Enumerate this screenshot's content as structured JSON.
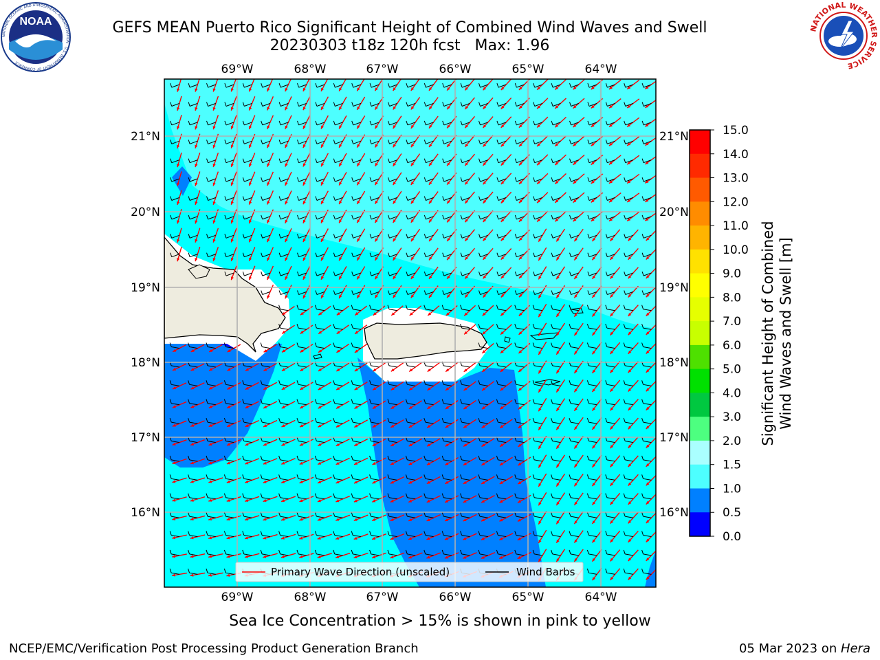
{
  "header": {
    "title_line1": "GEFS MEAN Puerto Rico Significant Height of Combined Wind Waves and Swell",
    "title_line2": "20230303 t18z 120h fcst   Max: 1.96"
  },
  "logos": {
    "left": {
      "icon": "noaa-logo",
      "text": "NOAA",
      "ring_text": "NATIONAL OCEANIC AND ATMOSPHERIC ADMINISTRATION · U.S. DEPARTMENT OF COMMERCE"
    },
    "right": {
      "icon": "nws-logo",
      "ring_text": "NATIONAL WEATHER SERVICE"
    }
  },
  "map": {
    "lon_labels": [
      "69°W",
      "68°W",
      "67°W",
      "66°W",
      "65°W",
      "64°W"
    ],
    "lat_labels": [
      "21°N",
      "20°N",
      "19°N",
      "18°N",
      "17°N",
      "16°N"
    ],
    "legend": {
      "primary_wave_label": "Primary Wave Direction (unscaled)",
      "wind_barbs_label": "Wind Barbs",
      "primary_wave_color": "#ff0000",
      "wind_barbs_color": "#000000"
    },
    "colors": {
      "land": "#eeecdf",
      "ice_free_white": "#ffffff",
      "band_0_5_1_0": "#0080ff",
      "band_1_0_1_5": "#00ffff",
      "band_1_5_2_0": "#4dffff",
      "band_0_0_0_5": "#0000ff"
    }
  },
  "colorbar": {
    "label_line1": "Significant Height of Combined",
    "label_line2": "Wind Waves and Swell [m]",
    "ticks": [
      "15.0",
      "14.0",
      "13.0",
      "12.0",
      "11.0",
      "10.0",
      "9.0",
      "8.0",
      "7.0",
      "6.0",
      "5.0",
      "4.0",
      "3.0",
      "2.0",
      "1.5",
      "1.0",
      "0.5",
      "0.0"
    ],
    "band_colors": [
      "#ff0000",
      "#ff2a00",
      "#ff5a00",
      "#ff8c00",
      "#ffb400",
      "#ffe100",
      "#ffff00",
      "#e6ff00",
      "#c8ff00",
      "#4ee000",
      "#00e000",
      "#00c840",
      "#4dff80",
      "#aaffff",
      "#4dffff",
      "#00ffff",
      "#0080ff",
      "#0000ff"
    ]
  },
  "captions": {
    "sea_ice_note": "Sea Ice Concentration > 15% is shown in pink to yellow",
    "footer_left": "NCEP/EMC/Verification Post Processing Product Generation Branch",
    "footer_right_prefix": "05 Mar 2023 on ",
    "footer_right_host": "Hera"
  }
}
